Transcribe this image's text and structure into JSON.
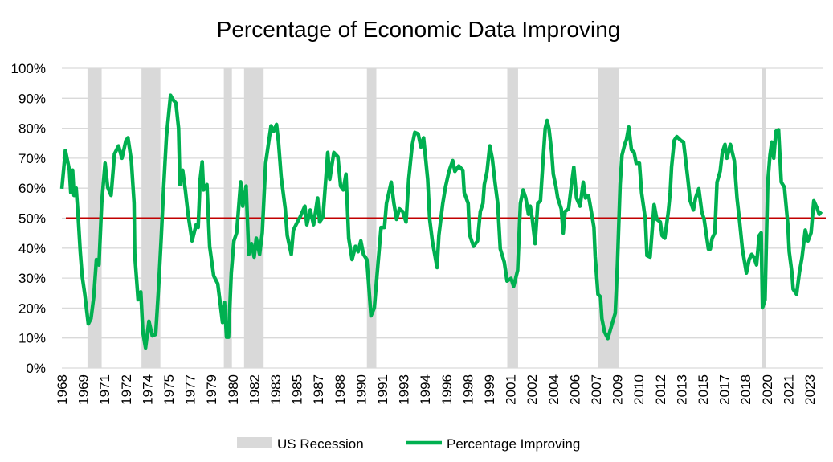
{
  "chart_data": {
    "type": "line",
    "title": "Percentage of Economic Data Improving",
    "xlabel": "",
    "ylabel": "",
    "ylim": [
      0,
      100
    ],
    "xlim": [
      1968,
      2024.3
    ],
    "grid": "horizontal",
    "legend_position": "bottom",
    "y_tick_labels": [
      "0%",
      "10%",
      "20%",
      "30%",
      "40%",
      "50%",
      "60%",
      "70%",
      "80%",
      "90%",
      "100%"
    ],
    "x_tick_labels": [
      "1968",
      "1969",
      "1971",
      "1972",
      "1974",
      "1975",
      "1977",
      "1979",
      "1980",
      "1982",
      "1983",
      "1985",
      "1987",
      "1988",
      "1990",
      "1991",
      "1993",
      "1994",
      "1996",
      "1998",
      "1999",
      "2001",
      "2002",
      "2004",
      "2006",
      "2007",
      "2009",
      "2010",
      "2012",
      "2013",
      "2015",
      "2017",
      "2018",
      "2020",
      "2021",
      "2023"
    ],
    "reference_line": {
      "value": 50,
      "color": "#c00000"
    },
    "recessions": {
      "name": "US Recession",
      "color": "#d9d9d9",
      "periods": [
        [
          1969.9,
          1970.95
        ],
        [
          1973.9,
          1975.3
        ],
        [
          1980.0,
          1980.6
        ],
        [
          1981.5,
          1982.95
        ],
        [
          1990.6,
          1991.3
        ],
        [
          2001.0,
          2001.8
        ],
        [
          2007.7,
          2009.3
        ],
        [
          2019.85,
          2020.15
        ]
      ]
    },
    "series": [
      {
        "name": "Percentage Improving",
        "color": "#00b050",
        "points": [
          [
            1968.0,
            59.8
          ],
          [
            1968.26,
            72.6
          ],
          [
            1968.56,
            66
          ],
          [
            1968.66,
            58.5
          ],
          [
            1968.8,
            66
          ],
          [
            1968.9,
            57.6
          ],
          [
            1969.06,
            60
          ],
          [
            1969.2,
            51
          ],
          [
            1969.36,
            38.8
          ],
          [
            1969.5,
            30.8
          ],
          [
            1969.7,
            24.5
          ],
          [
            1969.96,
            14.7
          ],
          [
            1970.16,
            16.5
          ],
          [
            1970.36,
            23.7
          ],
          [
            1970.56,
            36.2
          ],
          [
            1970.75,
            34.4
          ],
          [
            1970.95,
            55
          ],
          [
            1971.2,
            68.3
          ],
          [
            1971.4,
            60.3
          ],
          [
            1971.65,
            57.6
          ],
          [
            1971.9,
            71.4
          ],
          [
            1972.2,
            74.1
          ],
          [
            1972.45,
            70
          ],
          [
            1972.75,
            75.9
          ],
          [
            1972.9,
            76.8
          ],
          [
            1973.15,
            69.2
          ],
          [
            1973.35,
            55
          ],
          [
            1973.4,
            38
          ],
          [
            1973.65,
            22.8
          ],
          [
            1973.85,
            25.4
          ],
          [
            1974.0,
            12
          ],
          [
            1974.2,
            6.7
          ],
          [
            1974.45,
            15.6
          ],
          [
            1974.7,
            10.7
          ],
          [
            1974.95,
            11.2
          ],
          [
            1975.15,
            25.4
          ],
          [
            1975.35,
            42.4
          ],
          [
            1975.55,
            61.2
          ],
          [
            1975.75,
            77.2
          ],
          [
            1976.05,
            91
          ],
          [
            1976.2,
            89.7
          ],
          [
            1976.45,
            88.4
          ],
          [
            1976.65,
            80
          ],
          [
            1976.75,
            61.2
          ],
          [
            1976.95,
            66
          ],
          [
            1977.15,
            59.4
          ],
          [
            1977.35,
            51.3
          ],
          [
            1977.65,
            42.4
          ],
          [
            1977.95,
            47.8
          ],
          [
            1978.1,
            46.9
          ],
          [
            1978.25,
            63
          ],
          [
            1978.4,
            68.8
          ],
          [
            1978.5,
            59.4
          ],
          [
            1978.75,
            61.2
          ],
          [
            1978.95,
            40.6
          ],
          [
            1979.25,
            30.8
          ],
          [
            1979.55,
            28.1
          ],
          [
            1979.75,
            21
          ],
          [
            1979.9,
            15.2
          ],
          [
            1980.05,
            21.9
          ],
          [
            1980.2,
            10.3
          ],
          [
            1980.35,
            10.3
          ],
          [
            1980.55,
            31.7
          ],
          [
            1980.75,
            42.4
          ],
          [
            1980.95,
            45.1
          ],
          [
            1981.25,
            62.1
          ],
          [
            1981.4,
            54
          ],
          [
            1981.65,
            60.7
          ],
          [
            1981.85,
            37.9
          ],
          [
            1982.05,
            41.5
          ],
          [
            1982.25,
            37
          ],
          [
            1982.4,
            43.3
          ],
          [
            1982.65,
            37.9
          ],
          [
            1982.85,
            45.1
          ],
          [
            1983.1,
            68.3
          ],
          [
            1983.5,
            80.8
          ],
          [
            1983.7,
            79
          ],
          [
            1983.9,
            81.3
          ],
          [
            1984.05,
            75.4
          ],
          [
            1984.25,
            63.8
          ],
          [
            1984.55,
            53.1
          ],
          [
            1984.7,
            44.2
          ],
          [
            1985.0,
            37.9
          ],
          [
            1985.15,
            46
          ],
          [
            1985.35,
            47.8
          ],
          [
            1985.65,
            50.4
          ],
          [
            1986.0,
            54
          ],
          [
            1986.15,
            47.8
          ],
          [
            1986.4,
            52.7
          ],
          [
            1986.65,
            47.8
          ],
          [
            1986.95,
            56.7
          ],
          [
            1987.1,
            48.7
          ],
          [
            1987.35,
            50.4
          ],
          [
            1987.7,
            71.9
          ],
          [
            1987.85,
            63
          ],
          [
            1988.15,
            71.9
          ],
          [
            1988.45,
            70.5
          ],
          [
            1988.65,
            60.7
          ],
          [
            1988.85,
            59.4
          ],
          [
            1989.05,
            64.7
          ],
          [
            1989.25,
            43.3
          ],
          [
            1989.5,
            36.2
          ],
          [
            1989.75,
            40.6
          ],
          [
            1989.95,
            38.8
          ],
          [
            1990.15,
            42.4
          ],
          [
            1990.35,
            37.9
          ],
          [
            1990.6,
            36.2
          ],
          [
            1990.9,
            17.4
          ],
          [
            1991.15,
            20.1
          ],
          [
            1991.35,
            30.8
          ],
          [
            1991.65,
            46.9
          ],
          [
            1991.9,
            46.9
          ],
          [
            1992.05,
            54.9
          ],
          [
            1992.4,
            62
          ],
          [
            1992.6,
            55
          ],
          [
            1992.8,
            49.6
          ],
          [
            1993.0,
            53.1
          ],
          [
            1993.25,
            52.2
          ],
          [
            1993.5,
            48.7
          ],
          [
            1993.7,
            63
          ],
          [
            1993.95,
            74.1
          ],
          [
            1994.15,
            78.6
          ],
          [
            1994.4,
            78.1
          ],
          [
            1994.6,
            73.7
          ],
          [
            1994.8,
            76.8
          ],
          [
            1995.1,
            63
          ],
          [
            1995.25,
            49.6
          ],
          [
            1995.45,
            42.4
          ],
          [
            1995.8,
            33.5
          ],
          [
            1995.93,
            44.2
          ],
          [
            1996.22,
            54.9
          ],
          [
            1996.42,
            60.3
          ],
          [
            1996.68,
            65.6
          ],
          [
            1996.96,
            69.2
          ],
          [
            1997.12,
            65.6
          ],
          [
            1997.41,
            67.4
          ],
          [
            1997.71,
            66
          ],
          [
            1997.81,
            58.5
          ],
          [
            1998.1,
            54.9
          ],
          [
            1998.2,
            44.6
          ],
          [
            1998.5,
            40.6
          ],
          [
            1998.8,
            42.4
          ],
          [
            1999.0,
            52.2
          ],
          [
            1999.2,
            54.9
          ],
          [
            1999.3,
            61.2
          ],
          [
            1999.5,
            65.6
          ],
          [
            1999.7,
            74.1
          ],
          [
            1999.89,
            70
          ],
          [
            2000.09,
            62
          ],
          [
            2000.29,
            54.9
          ],
          [
            2000.48,
            39.7
          ],
          [
            2000.78,
            35.3
          ],
          [
            2000.98,
            29
          ],
          [
            2001.28,
            29.9
          ],
          [
            2001.47,
            27.2
          ],
          [
            2001.77,
            32.6
          ],
          [
            2001.97,
            54.9
          ],
          [
            2002.17,
            59.4
          ],
          [
            2002.37,
            56.7
          ],
          [
            2002.57,
            51.3
          ],
          [
            2002.7,
            54
          ],
          [
            2002.86,
            49.6
          ],
          [
            2003.06,
            41.5
          ],
          [
            2003.26,
            54.9
          ],
          [
            2003.46,
            55.8
          ],
          [
            2003.66,
            70
          ],
          [
            2003.81,
            79.9
          ],
          [
            2003.95,
            82.6
          ],
          [
            2004.09,
            79.9
          ],
          [
            2004.29,
            71.9
          ],
          [
            2004.41,
            64.7
          ],
          [
            2004.61,
            60.3
          ],
          [
            2004.74,
            56.7
          ],
          [
            2005.0,
            53.1
          ],
          [
            2005.14,
            45
          ],
          [
            2005.28,
            52.2
          ],
          [
            2005.54,
            53.1
          ],
          [
            2005.73,
            60.3
          ],
          [
            2005.93,
            67
          ],
          [
            2006.13,
            56.7
          ],
          [
            2006.39,
            54
          ],
          [
            2006.63,
            62
          ],
          [
            2006.79,
            56.7
          ],
          [
            2007.02,
            57.6
          ],
          [
            2007.26,
            51.3
          ],
          [
            2007.42,
            46.9
          ],
          [
            2007.52,
            37
          ],
          [
            2007.72,
            24.6
          ],
          [
            2007.91,
            23.7
          ],
          [
            2008.01,
            16.5
          ],
          [
            2008.21,
            12
          ],
          [
            2008.45,
            9.8
          ],
          [
            2008.71,
            13.8
          ],
          [
            2009.0,
            18.3
          ],
          [
            2009.16,
            34.4
          ],
          [
            2009.36,
            61.2
          ],
          [
            2009.5,
            71
          ],
          [
            2009.7,
            74.6
          ],
          [
            2009.84,
            76.3
          ],
          [
            2010.0,
            80.4
          ],
          [
            2010.2,
            72.8
          ],
          [
            2010.4,
            71.9
          ],
          [
            2010.55,
            68.3
          ],
          [
            2010.79,
            68.3
          ],
          [
            2010.95,
            58.5
          ],
          [
            2011.23,
            49.6
          ],
          [
            2011.35,
            37.5
          ],
          [
            2011.58,
            37
          ],
          [
            2011.88,
            54.5
          ],
          [
            2012.08,
            49.6
          ],
          [
            2012.34,
            48.7
          ],
          [
            2012.47,
            44.2
          ],
          [
            2012.67,
            43.3
          ],
          [
            2012.93,
            52.2
          ],
          [
            2013.07,
            58.5
          ],
          [
            2013.17,
            67
          ],
          [
            2013.37,
            75.9
          ],
          [
            2013.56,
            77.2
          ],
          [
            2013.86,
            75.9
          ],
          [
            2014.06,
            75.4
          ],
          [
            2014.2,
            70
          ],
          [
            2014.36,
            63.8
          ],
          [
            2014.55,
            55.8
          ],
          [
            2014.79,
            52.7
          ],
          [
            2014.95,
            56.7
          ],
          [
            2015.19,
            59.8
          ],
          [
            2015.41,
            52.2
          ],
          [
            2015.59,
            49.6
          ],
          [
            2015.9,
            39.7
          ],
          [
            2016.04,
            39.7
          ],
          [
            2016.18,
            43.3
          ],
          [
            2016.38,
            45.1
          ],
          [
            2016.54,
            62
          ],
          [
            2016.77,
            65.6
          ],
          [
            2016.93,
            71.9
          ],
          [
            2017.13,
            74.6
          ],
          [
            2017.27,
            70
          ],
          [
            2017.53,
            74.6
          ],
          [
            2017.82,
            69.2
          ],
          [
            2018.02,
            56.7
          ],
          [
            2018.22,
            48.7
          ],
          [
            2018.42,
            39.7
          ],
          [
            2018.72,
            31.7
          ],
          [
            2018.92,
            36.2
          ],
          [
            2019.11,
            37.9
          ],
          [
            2019.27,
            37
          ],
          [
            2019.47,
            34.4
          ],
          [
            2019.67,
            44.2
          ],
          [
            2019.81,
            45.1
          ],
          [
            2019.91,
            20.1
          ],
          [
            2020.1,
            22.8
          ],
          [
            2020.3,
            62
          ],
          [
            2020.46,
            71
          ],
          [
            2020.6,
            75.4
          ],
          [
            2020.74,
            70
          ],
          [
            2020.9,
            79
          ],
          [
            2021.1,
            79.5
          ],
          [
            2021.3,
            62
          ],
          [
            2021.53,
            60.3
          ],
          [
            2021.79,
            47.8
          ],
          [
            2021.89,
            38.8
          ],
          [
            2022.09,
            31.7
          ],
          [
            2022.18,
            26.3
          ],
          [
            2022.44,
            24.6
          ],
          [
            2022.64,
            31.7
          ],
          [
            2022.84,
            37
          ],
          [
            2023.08,
            46
          ],
          [
            2023.28,
            42.4
          ],
          [
            2023.51,
            45.1
          ],
          [
            2023.71,
            55.8
          ],
          [
            2023.97,
            53.1
          ],
          [
            2024.11,
            51.3
          ],
          [
            2024.27,
            52.2
          ]
        ]
      }
    ]
  }
}
